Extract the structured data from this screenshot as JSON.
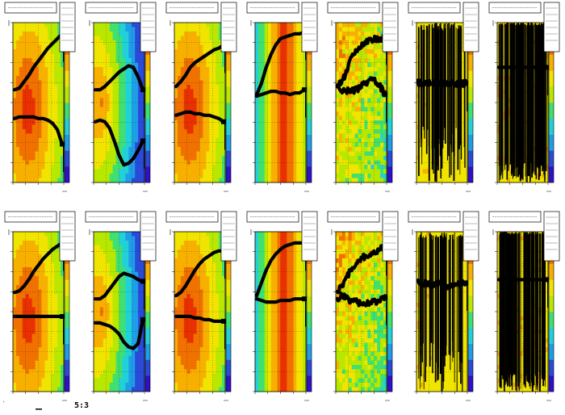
{
  "page": {
    "corner_label": "'",
    "canvas_label": "5:3"
  },
  "colors": {
    "colz_ramp": [
      "#3010c8",
      "#2a4ad8",
      "#1f9ee8",
      "#22d0d8",
      "#40e070",
      "#b8e800",
      "#f0e400",
      "#f8b000",
      "#f07000",
      "#e83000"
    ],
    "overlay": "#000000",
    "frame": "#000000",
    "grid": "#000000"
  },
  "chart_data": [
    {
      "type": "heatmap",
      "row": "top",
      "col": 1,
      "style": "broad",
      "title": "",
      "xlabel": "",
      "ylabel": "",
      "legend": "top-right",
      "series": [
        {
          "x": [
            0.0,
            0.1,
            0.2,
            0.3,
            0.4,
            0.5,
            0.6,
            0.7,
            0.8,
            0.9,
            1.0
          ],
          "y": [
            0.58,
            0.59,
            0.63,
            0.67,
            0.72,
            0.76,
            0.8,
            0.84,
            0.87,
            0.9,
            0.93
          ]
        },
        {
          "x": [
            0.0,
            0.1,
            0.2,
            0.3,
            0.4,
            0.5,
            0.6,
            0.7,
            0.8,
            0.9,
            1.0
          ],
          "y": [
            0.4,
            0.41,
            0.41,
            0.41,
            0.41,
            0.4,
            0.4,
            0.39,
            0.37,
            0.33,
            0.24
          ]
        }
      ]
    },
    {
      "type": "heatmap",
      "row": "top",
      "col": 2,
      "style": "cool",
      "title": "",
      "xlabel": "",
      "ylabel": "",
      "legend": "top-right",
      "series": [
        {
          "x": [
            0.0,
            0.1,
            0.2,
            0.3,
            0.4,
            0.5,
            0.6,
            0.7,
            0.8,
            0.9,
            1.0
          ],
          "y": [
            0.58,
            0.58,
            0.6,
            0.63,
            0.66,
            0.69,
            0.71,
            0.73,
            0.72,
            0.66,
            0.58
          ]
        },
        {
          "x": [
            0.0,
            0.1,
            0.2,
            0.3,
            0.4,
            0.5,
            0.6,
            0.7,
            0.8,
            0.9,
            1.0
          ],
          "y": [
            0.38,
            0.39,
            0.38,
            0.34,
            0.26,
            0.17,
            0.11,
            0.12,
            0.15,
            0.2,
            0.26
          ]
        }
      ]
    },
    {
      "type": "heatmap",
      "row": "top",
      "col": 3,
      "style": "broad",
      "title": "",
      "xlabel": "",
      "ylabel": "",
      "legend": "top-right",
      "series": [
        {
          "x": [
            0.0,
            0.1,
            0.2,
            0.3,
            0.4,
            0.5,
            0.6,
            0.7,
            0.8,
            0.9,
            1.0
          ],
          "y": [
            0.6,
            0.63,
            0.67,
            0.72,
            0.75,
            0.77,
            0.79,
            0.81,
            0.83,
            0.84,
            0.86
          ]
        },
        {
          "x": [
            0.0,
            0.1,
            0.2,
            0.3,
            0.4,
            0.5,
            0.6,
            0.7,
            0.8,
            0.9,
            1.0
          ],
          "y": [
            0.42,
            0.43,
            0.44,
            0.44,
            0.43,
            0.43,
            0.42,
            0.42,
            0.41,
            0.4,
            0.38
          ]
        }
      ]
    },
    {
      "type": "heatmap",
      "row": "top",
      "col": 4,
      "style": "band",
      "title": "",
      "xlabel": "",
      "ylabel": "",
      "legend": "top-right",
      "series": [
        {
          "x": [
            0.0,
            0.1,
            0.2,
            0.3,
            0.4,
            0.5,
            0.6,
            0.7,
            0.8,
            0.9,
            1.0
          ],
          "y": [
            0.55,
            0.62,
            0.72,
            0.8,
            0.86,
            0.9,
            0.91,
            0.92,
            0.93,
            0.93,
            0.94
          ]
        },
        {
          "x": [
            0.0,
            0.1,
            0.2,
            0.3,
            0.4,
            0.5,
            0.6,
            0.7,
            0.8,
            0.9,
            1.0
          ],
          "y": [
            0.54,
            0.55,
            0.56,
            0.57,
            0.57,
            0.56,
            0.56,
            0.55,
            0.56,
            0.56,
            0.58
          ]
        }
      ]
    },
    {
      "type": "heatmap",
      "row": "top",
      "col": 5,
      "style": "noisy",
      "title": "",
      "xlabel": "",
      "ylabel": "",
      "legend": "top-right",
      "series": [
        {
          "x": [
            0.0,
            0.1,
            0.2,
            0.3,
            0.4,
            0.5,
            0.6,
            0.7,
            0.8,
            0.9,
            1.0
          ],
          "y": [
            0.6,
            0.63,
            0.7,
            0.78,
            0.83,
            0.86,
            0.88,
            0.89,
            0.9,
            0.9,
            0.91
          ]
        },
        {
          "x": [
            0.0,
            0.1,
            0.2,
            0.3,
            0.4,
            0.5,
            0.6,
            0.7,
            0.8,
            0.9,
            1.0
          ],
          "y": [
            0.6,
            0.58,
            0.57,
            0.57,
            0.58,
            0.6,
            0.62,
            0.64,
            0.63,
            0.6,
            0.55
          ]
        }
      ]
    },
    {
      "type": "heatmap",
      "row": "top",
      "col": 6,
      "style": "spiky",
      "title": "",
      "xlabel": "",
      "ylabel": "",
      "legend": "top-right",
      "series": [
        {
          "x": [
            0.0,
            0.1,
            0.2,
            0.3,
            0.4,
            0.5,
            0.6,
            0.7,
            0.8,
            0.9,
            1.0
          ],
          "y": [
            0.62,
            0.62,
            0.62,
            0.62,
            0.62,
            0.62,
            0.62,
            0.62,
            0.62,
            0.62,
            0.62
          ]
        }
      ]
    },
    {
      "type": "heatmap",
      "row": "top",
      "col": 7,
      "style": "dense",
      "title": "",
      "xlabel": "",
      "ylabel": "",
      "legend": "top-right",
      "series": [
        {
          "x": [
            0.0,
            0.1,
            0.2,
            0.3,
            0.4,
            0.5,
            0.6,
            0.7,
            0.8,
            0.9,
            1.0
          ],
          "y": [
            0.72,
            0.72,
            0.72,
            0.72,
            0.72,
            0.72,
            0.72,
            0.72,
            0.72,
            0.72,
            0.72
          ]
        }
      ]
    },
    {
      "type": "heatmap",
      "row": "bottom",
      "col": 1,
      "style": "broad",
      "title": "",
      "xlabel": "",
      "ylabel": "",
      "legend": "top-right",
      "series": [
        {
          "x": [
            0.0,
            0.1,
            0.2,
            0.3,
            0.4,
            0.5,
            0.6,
            0.7,
            0.8,
            0.9,
            1.0
          ],
          "y": [
            0.62,
            0.63,
            0.66,
            0.7,
            0.75,
            0.79,
            0.83,
            0.86,
            0.89,
            0.91,
            0.93
          ]
        },
        {
          "x": [
            0.0,
            0.1,
            0.2,
            0.3,
            0.4,
            0.5,
            0.6,
            0.7,
            0.8,
            0.9,
            1.0
          ],
          "y": [
            0.47,
            0.47,
            0.47,
            0.47,
            0.47,
            0.47,
            0.47,
            0.47,
            0.47,
            0.47,
            0.47
          ]
        }
      ]
    },
    {
      "type": "heatmap",
      "row": "bottom",
      "col": 2,
      "style": "cool",
      "title": "",
      "xlabel": "",
      "ylabel": "",
      "legend": "top-right",
      "series": [
        {
          "x": [
            0.0,
            0.1,
            0.2,
            0.3,
            0.4,
            0.5,
            0.6,
            0.7,
            0.8,
            0.9,
            1.0
          ],
          "y": [
            0.58,
            0.58,
            0.6,
            0.64,
            0.68,
            0.72,
            0.74,
            0.73,
            0.72,
            0.7,
            0.69
          ]
        },
        {
          "x": [
            0.0,
            0.1,
            0.2,
            0.3,
            0.4,
            0.5,
            0.6,
            0.7,
            0.8,
            0.9,
            1.0
          ],
          "y": [
            0.43,
            0.43,
            0.42,
            0.41,
            0.39,
            0.36,
            0.31,
            0.28,
            0.27,
            0.3,
            0.45
          ]
        }
      ]
    },
    {
      "type": "heatmap",
      "row": "bottom",
      "col": 3,
      "style": "broad",
      "title": "",
      "xlabel": "",
      "ylabel": "",
      "legend": "top-right",
      "series": [
        {
          "x": [
            0.0,
            0.1,
            0.2,
            0.3,
            0.4,
            0.5,
            0.6,
            0.7,
            0.8,
            0.9,
            1.0
          ],
          "y": [
            0.6,
            0.62,
            0.66,
            0.71,
            0.76,
            0.8,
            0.83,
            0.85,
            0.87,
            0.88,
            0.88
          ]
        },
        {
          "x": [
            0.0,
            0.1,
            0.2,
            0.3,
            0.4,
            0.5,
            0.6,
            0.7,
            0.8,
            0.9,
            1.0
          ],
          "y": [
            0.47,
            0.47,
            0.47,
            0.47,
            0.46,
            0.46,
            0.45,
            0.45,
            0.44,
            0.44,
            0.44
          ]
        }
      ]
    },
    {
      "type": "heatmap",
      "row": "bottom",
      "col": 4,
      "style": "band",
      "title": "",
      "xlabel": "",
      "ylabel": "",
      "legend": "top-right",
      "series": [
        {
          "x": [
            0.0,
            0.1,
            0.2,
            0.3,
            0.4,
            0.5,
            0.6,
            0.7,
            0.8,
            0.9,
            1.0
          ],
          "y": [
            0.6,
            0.68,
            0.76,
            0.82,
            0.86,
            0.89,
            0.91,
            0.92,
            0.93,
            0.93,
            0.93
          ]
        },
        {
          "x": [
            0.0,
            0.1,
            0.2,
            0.3,
            0.4,
            0.5,
            0.6,
            0.7,
            0.8,
            0.9,
            1.0
          ],
          "y": [
            0.58,
            0.57,
            0.56,
            0.56,
            0.56,
            0.57,
            0.57,
            0.57,
            0.58,
            0.58,
            0.58
          ]
        }
      ]
    },
    {
      "type": "heatmap",
      "row": "bottom",
      "col": 5,
      "style": "noisy",
      "title": "",
      "xlabel": "",
      "ylabel": "",
      "legend": "top-right",
      "series": [
        {
          "x": [
            0.0,
            0.1,
            0.2,
            0.3,
            0.4,
            0.5,
            0.6,
            0.7,
            0.8,
            0.9,
            1.0
          ],
          "y": [
            0.62,
            0.66,
            0.72,
            0.77,
            0.8,
            0.83,
            0.85,
            0.86,
            0.88,
            0.89,
            0.9
          ]
        },
        {
          "x": [
            0.0,
            0.1,
            0.2,
            0.3,
            0.4,
            0.5,
            0.6,
            0.7,
            0.8,
            0.9,
            1.0
          ],
          "y": [
            0.58,
            0.6,
            0.58,
            0.56,
            0.56,
            0.55,
            0.55,
            0.56,
            0.56,
            0.57,
            0.59
          ]
        }
      ]
    },
    {
      "type": "heatmap",
      "row": "bottom",
      "col": 6,
      "style": "spiky",
      "title": "",
      "xlabel": "",
      "ylabel": "",
      "legend": "top-right",
      "series": [
        {
          "x": [
            0.0,
            0.1,
            0.2,
            0.3,
            0.4,
            0.5,
            0.6,
            0.7,
            0.8,
            0.9,
            1.0
          ],
          "y": [
            0.68,
            0.67,
            0.68,
            0.66,
            0.67,
            0.68,
            0.66,
            0.66,
            0.67,
            0.67,
            0.68
          ]
        }
      ]
    },
    {
      "type": "heatmap",
      "row": "bottom",
      "col": 7,
      "style": "dense",
      "title": "",
      "xlabel": "",
      "ylabel": "",
      "legend": "top-right",
      "series": [
        {
          "x": [
            0.0,
            0.1,
            0.2,
            0.3,
            0.4,
            0.5,
            0.6,
            0.7,
            0.8,
            0.9,
            1.0
          ],
          "y": [
            0.7,
            0.7,
            0.7,
            0.7,
            0.7,
            0.7,
            0.7,
            0.7,
            0.7,
            0.7,
            0.7
          ]
        }
      ]
    }
  ]
}
